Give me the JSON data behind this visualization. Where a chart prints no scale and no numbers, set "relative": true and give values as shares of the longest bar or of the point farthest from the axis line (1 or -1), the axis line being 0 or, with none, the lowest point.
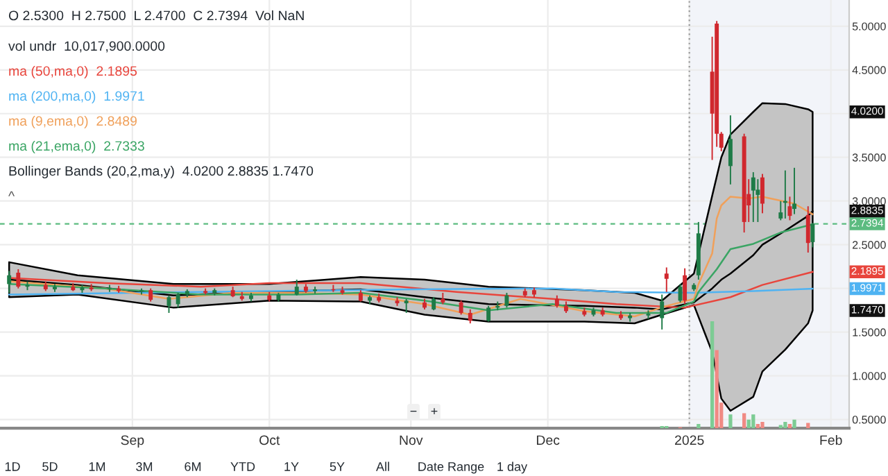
{
  "chart_data": [
    {
      "type": "candlestick",
      "x": [
        "2024-08-05",
        "2024-08-07",
        "2024-08-09",
        "2024-08-13",
        "2024-08-15",
        "2024-08-19",
        "2024-08-21",
        "2024-08-23",
        "2024-08-27",
        "2024-08-29",
        "2024-09-03",
        "2024-09-05",
        "2024-09-09",
        "2024-09-11",
        "2024-09-13",
        "2024-09-17",
        "2024-09-19",
        "2024-09-23",
        "2024-09-25",
        "2024-09-27",
        "2024-10-01",
        "2024-10-03",
        "2024-10-07",
        "2024-10-09",
        "2024-10-11",
        "2024-10-15",
        "2024-10-17",
        "2024-10-21",
        "2024-10-23",
        "2024-10-25",
        "2024-10-29",
        "2024-10-31",
        "2024-11-04",
        "2024-11-06",
        "2024-11-08",
        "2024-11-12",
        "2024-11-14",
        "2024-11-18",
        "2024-11-20",
        "2024-11-22",
        "2024-11-26",
        "2024-11-28",
        "2024-12-03",
        "2024-12-05",
        "2024-12-09",
        "2024-12-11",
        "2024-12-13",
        "2024-12-17",
        "2024-12-19",
        "2024-12-23",
        "2024-12-26",
        "2024-12-27",
        "2024-12-30",
        "2024-12-31",
        "2025-01-02",
        "2025-01-03",
        "2025-01-06",
        "2025-01-07",
        "2025-01-08",
        "2025-01-10",
        "2025-01-13",
        "2025-01-14",
        "2025-01-15",
        "2025-01-16",
        "2025-01-17",
        "2025-01-21",
        "2025-01-22",
        "2025-01-23",
        "2025-01-24",
        "2025-01-27",
        "2025-01-28"
      ],
      "ohlc": [
        [
          2.05,
          2.2,
          1.95,
          2.15
        ],
        [
          2.18,
          2.22,
          2.0,
          2.02
        ],
        [
          2.02,
          2.08,
          1.98,
          2.04
        ],
        [
          2.04,
          2.08,
          1.97,
          1.99
        ],
        [
          1.99,
          2.05,
          1.96,
          2.02
        ],
        [
          2.02,
          2.06,
          1.97,
          1.98
        ],
        [
          1.98,
          2.04,
          1.95,
          2.01
        ],
        [
          2.01,
          2.05,
          1.97,
          1.99
        ],
        [
          1.99,
          2.04,
          1.96,
          2.0
        ],
        [
          2.0,
          2.03,
          1.95,
          1.97
        ],
        [
          1.97,
          2.0,
          1.93,
          1.98
        ],
        [
          1.98,
          2.0,
          1.85,
          1.87
        ],
        [
          1.8,
          1.92,
          1.72,
          1.9
        ],
        [
          1.82,
          1.95,
          1.78,
          1.93
        ],
        [
          1.93,
          1.99,
          1.9,
          1.97
        ],
        [
          1.97,
          2.0,
          1.93,
          1.95
        ],
        [
          1.95,
          2.0,
          1.92,
          1.98
        ],
        [
          1.98,
          2.02,
          1.9,
          1.91
        ],
        [
          1.91,
          1.96,
          1.86,
          1.88
        ],
        [
          1.88,
          1.95,
          1.85,
          1.92
        ],
        [
          1.92,
          1.96,
          1.85,
          1.87
        ],
        [
          1.87,
          1.95,
          1.85,
          1.93
        ],
        [
          1.93,
          2.1,
          1.92,
          2.02
        ],
        [
          2.02,
          2.05,
          1.95,
          1.97
        ],
        [
          1.97,
          2.02,
          1.94,
          1.99
        ],
        [
          1.99,
          2.04,
          1.96,
          1.98
        ],
        [
          1.98,
          2.02,
          1.93,
          1.95
        ],
        [
          1.95,
          1.98,
          1.85,
          1.86
        ],
        [
          1.86,
          1.92,
          1.82,
          1.9
        ],
        [
          1.9,
          1.94,
          1.84,
          1.86
        ],
        [
          1.86,
          1.9,
          1.8,
          1.83
        ],
        [
          1.83,
          1.88,
          1.72,
          1.86
        ],
        [
          1.84,
          1.88,
          1.76,
          1.78
        ],
        [
          1.76,
          1.9,
          1.75,
          1.88
        ],
        [
          1.88,
          1.95,
          1.82,
          1.84
        ],
        [
          1.84,
          1.86,
          1.7,
          1.72
        ],
        [
          1.72,
          1.76,
          1.6,
          1.63
        ],
        [
          1.63,
          1.8,
          1.62,
          1.78
        ],
        [
          1.78,
          1.85,
          1.75,
          1.8
        ],
        [
          1.8,
          1.95,
          1.78,
          1.92
        ],
        [
          1.97,
          2.0,
          1.9,
          1.92
        ],
        [
          1.98,
          2.01,
          1.9,
          1.93
        ],
        [
          1.88,
          1.92,
          1.78,
          1.8
        ],
        [
          1.8,
          1.85,
          1.72,
          1.74
        ],
        [
          1.74,
          1.78,
          1.68,
          1.7
        ],
        [
          1.7,
          1.78,
          1.68,
          1.75
        ],
        [
          1.75,
          1.78,
          1.68,
          1.7
        ],
        [
          1.7,
          1.74,
          1.64,
          1.66
        ],
        [
          1.66,
          1.72,
          1.62,
          1.69
        ],
        [
          1.69,
          1.75,
          1.65,
          1.71
        ],
        [
          1.66,
          1.93,
          1.53,
          1.85
        ],
        [
          2.17,
          2.24,
          1.96,
          2.11
        ],
        [
          1.86,
          2.05,
          1.84,
          2.02
        ],
        [
          2.15,
          2.23,
          1.82,
          1.86
        ],
        [
          1.99,
          2.06,
          1.97,
          2.04
        ],
        [
          2.15,
          2.76,
          2.1,
          2.63
        ],
        [
          4.48,
          4.88,
          3.47,
          4.0
        ],
        [
          5.03,
          5.06,
          3.62,
          3.77
        ],
        [
          3.77,
          3.79,
          3.57,
          3.61
        ],
        [
          3.4,
          3.98,
          3.19,
          3.71
        ],
        [
          3.74,
          3.77,
          2.64,
          2.76
        ],
        [
          3.08,
          3.25,
          2.76,
          2.95
        ],
        [
          3.12,
          3.33,
          2.76,
          3.27
        ],
        [
          3.07,
          3.25,
          2.76,
          3.13
        ],
        [
          3.27,
          3.31,
          2.86,
          2.97
        ],
        [
          2.8,
          3.0,
          2.78,
          2.87
        ],
        [
          2.98,
          3.35,
          2.8,
          3.0
        ],
        [
          2.94,
          3.05,
          2.78,
          2.83
        ],
        [
          2.91,
          3.38,
          2.85,
          2.97
        ],
        [
          2.84,
          2.94,
          2.41,
          2.52
        ],
        [
          2.53,
          2.75,
          2.47,
          2.7394
        ]
      ],
      "colors": [
        "#1e7b47",
        "#d0282e",
        "#1e7b47",
        "#d0282e",
        "#1e7b47",
        "#d0282e",
        "#1e7b47",
        "#d0282e",
        "#1e7b47",
        "#d0282e",
        "#1e7b47",
        "#d0282e",
        "#1e7b47",
        "#1e7b47",
        "#1e7b47",
        "#d0282e",
        "#1e7b47",
        "#d0282e",
        "#d0282e",
        "#1e7b47",
        "#d0282e",
        "#1e7b47",
        "#1e7b47",
        "#d0282e",
        "#1e7b47",
        "#d0282e",
        "#d0282e",
        "#d0282e",
        "#1e7b47",
        "#d0282e",
        "#d0282e",
        "#1e7b47",
        "#d0282e",
        "#1e7b47",
        "#d0282e",
        "#d0282e",
        "#d0282e",
        "#1e7b47",
        "#1e7b47",
        "#1e7b47",
        "#d0282e",
        "#d0282e",
        "#d0282e",
        "#d0282e",
        "#d0282e",
        "#1e7b47",
        "#d0282e",
        "#d0282e",
        "#1e7b47",
        "#1e7b47",
        "#1e7b47",
        "#d0282e",
        "#1e7b47",
        "#d0282e",
        "#1e7b47",
        "#1e7b47",
        "#d0282e",
        "#d0282e",
        "#d0282e",
        "#1e7b47",
        "#d0282e",
        "#d0282e",
        "#1e7b47",
        "#1e7b47",
        "#d0282e",
        "#1e7b47",
        "#1e7b47",
        "#d0282e",
        "#1e7b47",
        "#d0282e",
        "#1e7b47"
      ],
      "series": [
        {
          "type": "line",
          "color": "#000000",
          "x": [
            "2024-08-05",
            "2024-08-20",
            "2024-09-10",
            "2024-10-01",
            "2024-10-21",
            "2024-11-04",
            "2024-11-18",
            "2024-12-09",
            "2024-12-20",
            "2024-12-26",
            "2025-01-02",
            "2025-01-06",
            "2025-01-08",
            "2025-01-10",
            "2025-01-15",
            "2025-01-17",
            "2025-01-22",
            "2025-01-27",
            "2025-01-28"
          ],
          "values": [
            2.1,
            2.04,
            1.92,
            1.96,
            1.99,
            1.9,
            1.82,
            1.8,
            1.78,
            1.76,
            1.84,
            2.0,
            2.1,
            2.17,
            2.38,
            2.5,
            2.66,
            2.83,
            2.8835
          ],
          "upper": [
            2.3,
            2.15,
            2.05,
            2.05,
            2.13,
            2.1,
            2.02,
            1.98,
            1.95,
            1.86,
            2.17,
            3.06,
            3.5,
            3.76,
            4.02,
            4.12,
            4.11,
            4.05,
            4.02
          ],
          "lower": [
            1.9,
            1.93,
            1.78,
            1.86,
            1.85,
            1.7,
            1.62,
            1.62,
            1.6,
            1.7,
            1.81,
            1.27,
            0.74,
            0.6,
            0.76,
            1.05,
            1.3,
            1.6,
            1.747
          ]
        },
        {
          "type": "line",
          "name": "ma (50,ma,0)  2.1895",
          "color": "#e8453c",
          "x": [
            "2024-08-05",
            "2024-08-26",
            "2024-09-16",
            "2024-10-01",
            "2024-10-21",
            "2024-11-11",
            "2024-12-02",
            "2024-12-16",
            "2024-12-31",
            "2025-01-10",
            "2025-01-17",
            "2025-01-28"
          ],
          "values": [
            2.12,
            2.06,
            2.02,
            2.06,
            2.06,
            1.96,
            1.88,
            1.82,
            1.78,
            1.9,
            2.04,
            2.1895
          ]
        },
        {
          "type": "line",
          "name": "ma (200,ma,0)  1.9971",
          "color": "#4fb3f2",
          "x": [
            "2024-08-05",
            "2024-09-02",
            "2024-10-01",
            "2024-11-01",
            "2024-12-02",
            "2024-12-16",
            "2025-01-02",
            "2025-01-15",
            "2025-01-28"
          ],
          "values": [
            1.93,
            1.95,
            1.97,
            1.99,
            2.0,
            1.96,
            1.95,
            1.97,
            1.9971
          ]
        },
        {
          "type": "line",
          "name": "ma (9,ema,0)  2.8489",
          "color": "#f0a05a",
          "x": [
            "2024-08-05",
            "2024-08-26",
            "2024-09-09",
            "2024-09-23",
            "2024-10-07",
            "2024-10-21",
            "2024-11-04",
            "2024-11-14",
            "2024-11-25",
            "2024-12-09",
            "2024-12-20",
            "2024-12-27",
            "2025-01-02",
            "2025-01-03",
            "2025-01-06",
            "2025-01-07",
            "2025-01-08",
            "2025-01-10",
            "2025-01-14",
            "2025-01-17",
            "2025-01-24",
            "2025-01-28"
          ],
          "values": [
            2.08,
            2.0,
            1.88,
            1.95,
            1.95,
            1.93,
            1.82,
            1.7,
            1.88,
            1.74,
            1.68,
            1.8,
            1.88,
            2.05,
            2.4,
            2.8,
            2.95,
            3.05,
            3.03,
            3.05,
            2.97,
            2.8489
          ]
        },
        {
          "type": "line",
          "name": "ma (21,ema,0)  2.7333",
          "color": "#3aa564",
          "x": [
            "2024-08-05",
            "2024-08-26",
            "2024-09-16",
            "2024-10-07",
            "2024-10-21",
            "2024-11-04",
            "2024-11-18",
            "2024-12-02",
            "2024-12-16",
            "2024-12-27",
            "2025-01-02",
            "2025-01-03",
            "2025-01-07",
            "2025-01-10",
            "2025-01-15",
            "2025-01-21",
            "2025-01-28"
          ],
          "values": [
            2.05,
            2.0,
            1.93,
            1.93,
            1.95,
            1.86,
            1.75,
            1.82,
            1.72,
            1.72,
            1.85,
            1.96,
            2.22,
            2.45,
            2.51,
            2.64,
            2.7333
          ]
        }
      ],
      "xlim": [
        "2024-08-03",
        "2025-02-05"
      ],
      "xticks": [
        {
          "value": "2024-09-01",
          "label": null
        },
        {
          "value": "2024-10-01",
          "label": null
        },
        {
          "value": "2024-11-01",
          "label": null
        },
        {
          "value": "2024-12-01",
          "label": null
        },
        {
          "value": "2025-01-01",
          "label": null
        },
        {
          "value": "2025-02-01",
          "label": null
        }
      ],
      "ylim": [
        0.4,
        5.3
      ],
      "yticks": [
        {
          "value": 0.5,
          "label": "0.5000"
        },
        {
          "value": 1.0,
          "label": "1.0000"
        },
        {
          "value": 1.5,
          "label": "1.5000"
        },
        {
          "value": 2.0,
          "label": null
        },
        {
          "value": 2.5,
          "label": "2.5000"
        },
        {
          "value": 3.0,
          "label": "3.0000"
        },
        {
          "value": 3.5,
          "label": "3.5000"
        },
        {
          "value": 4.0,
          "label": null
        },
        {
          "value": 4.5,
          "label": "4.5000"
        },
        {
          "value": 5.0,
          "label": "5.0000"
        }
      ],
      "grid": true,
      "tick_labels": "y",
      "legend": "top left",
      "ref_lines": [
        {
          "axis": "y",
          "value": 2.7394,
          "label": "2.7394",
          "color": "#5cbb80",
          "line_style": "dashed"
        },
        {
          "axis": "x",
          "value": "2025-01-01",
          "color": "#999999",
          "line_style": "dotted"
        }
      ],
      "bands": [
        {
          "axis": "x",
          "from": "2025-01-01",
          "to": "2025-02-05",
          "color": "#f2f4f9"
        }
      ],
      "annotations": [
        "O 2.5300  H 2.7500  L 2.4700  C 2.7394  Vol NaN",
        "vol undr  10,017,900.0000",
        "Bollinger Bands (20,2,ma,y)  4.0200 2.8835 1.7470",
        "^",
        "−",
        "+",
        "1D",
        "5D",
        "1M",
        "3M",
        "6M",
        "YTD",
        "1Y",
        "5Y",
        "All",
        "Date Range",
        "1 day",
        {
          "text": "4.0200",
          "x": "2025-02-05",
          "y": 4.02
        },
        {
          "text": "2.8835",
          "x": "2025-02-05",
          "y": 2.8835
        },
        {
          "text": "1.7470",
          "x": "2025-02-05",
          "y": 1.747
        },
        {
          "text": "2.1895",
          "x": "2025-02-05",
          "y": 2.1895
        },
        {
          "text": "1.9971",
          "x": "2025-02-05",
          "y": 1.9971
        }
      ]
    },
    {
      "type": "bar",
      "relative": true,
      "xlim": [
        "2024-08-03",
        "2025-02-05"
      ],
      "xticks": [
        {
          "value": "2024-09-01",
          "label": "Sep"
        },
        {
          "value": "2024-10-01",
          "label": "Oct"
        },
        {
          "value": "2024-11-01",
          "label": "Nov"
        },
        {
          "value": "2024-12-01",
          "label": "Dec"
        },
        {
          "value": "2025-01-01",
          "label": "2025"
        },
        {
          "value": "2025-02-01",
          "label": "Feb"
        }
      ],
      "x": [
        "2024-12-26",
        "2024-12-27",
        "2024-12-30",
        "2025-01-03",
        "2025-01-06",
        "2025-01-07",
        "2025-01-08",
        "2025-01-10",
        "2025-01-13",
        "2025-01-14",
        "2025-01-15",
        "2025-01-16",
        "2025-01-17",
        "2025-01-21",
        "2025-01-22",
        "2025-01-23",
        "2025-01-24",
        "2025-01-27"
      ],
      "values": [
        0.02,
        0.02,
        0.01,
        0.04,
        1,
        0.73,
        0.24,
        0.13,
        0.14,
        0.08,
        0.13,
        0.04,
        0.06,
        0.03,
        0.06,
        0.04,
        0.08,
        0.05
      ],
      "colors": [
        "#7dcc94",
        "#7dcc94",
        "#f08a84",
        "#7dcc94",
        "#7dcc94",
        "#f08a84",
        "#f08a84",
        "#7dcc94",
        "#f08a84",
        "#7dcc94",
        "#7dcc94",
        "#f08a84",
        "#f08a84",
        "#7dcc94",
        "#7dcc94",
        "#f08a84",
        "#7dcc94",
        "#f08a84"
      ]
    }
  ]
}
